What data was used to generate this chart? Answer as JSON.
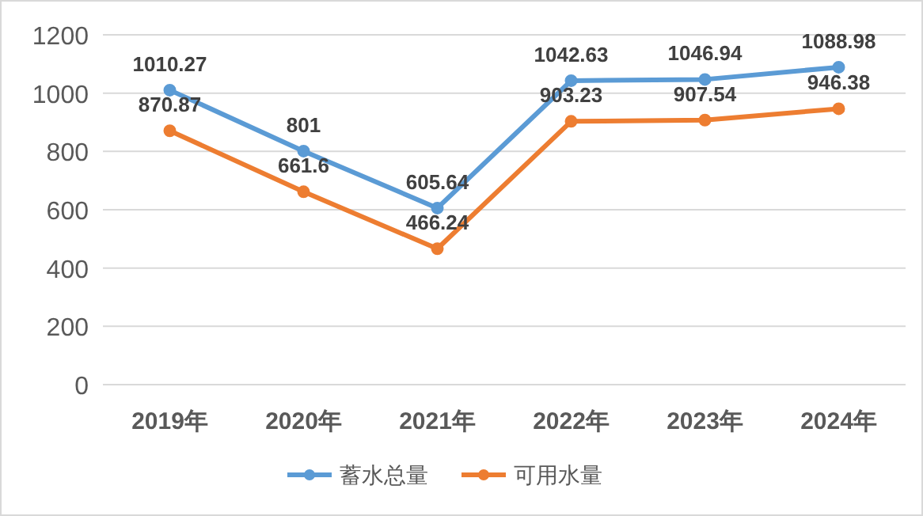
{
  "chart_data": {
    "type": "line",
    "categories": [
      "2019年",
      "2020年",
      "2021年",
      "2022年",
      "2023年",
      "2024年"
    ],
    "series": [
      {
        "name": "蓄水总量",
        "color": "#5b9bd5",
        "values": [
          1010.27,
          801,
          605.64,
          1042.63,
          1046.94,
          1088.98
        ]
      },
      {
        "name": "可用水量",
        "color": "#ed7d31",
        "values": [
          870.87,
          661.6,
          466.24,
          903.23,
          907.54,
          946.38
        ]
      }
    ],
    "ylim": [
      0,
      1200
    ],
    "yticks": [
      0,
      200,
      400,
      600,
      800,
      1000,
      1200
    ],
    "grid": "y",
    "legend": "bottom",
    "marker": "circle",
    "data_labels": true
  }
}
